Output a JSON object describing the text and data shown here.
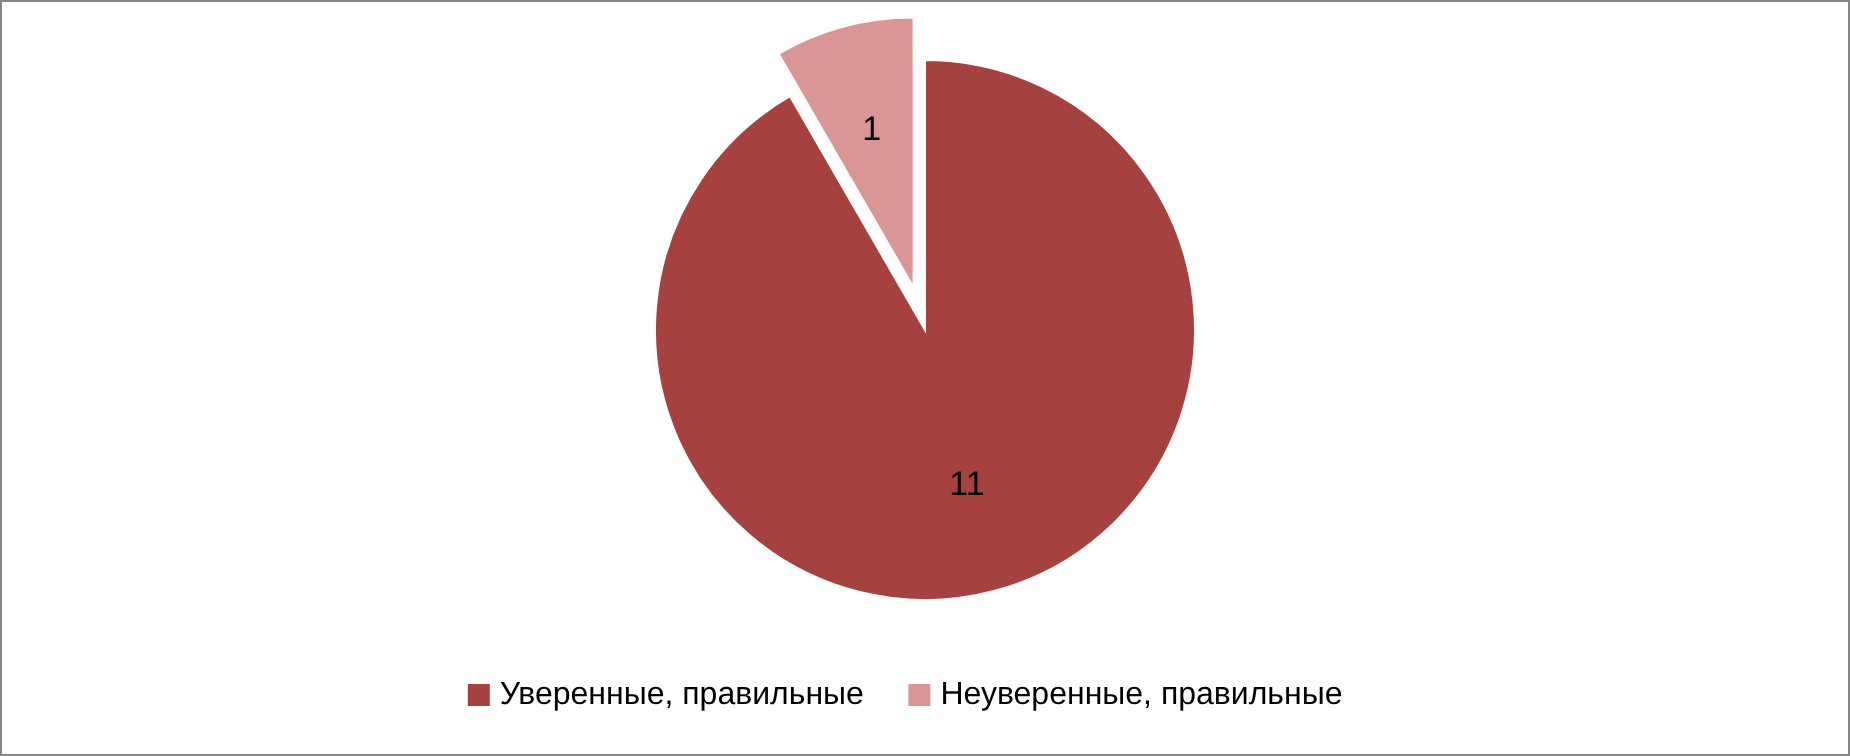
{
  "chart_data": {
    "type": "pie",
    "categories": [
      "Уверенные, правильные",
      "Неуверенные, правильные"
    ],
    "values": [
      11,
      1
    ],
    "colors": [
      "#a5423f",
      "#d99694"
    ],
    "data_labels": true,
    "legend": "bottom"
  }
}
